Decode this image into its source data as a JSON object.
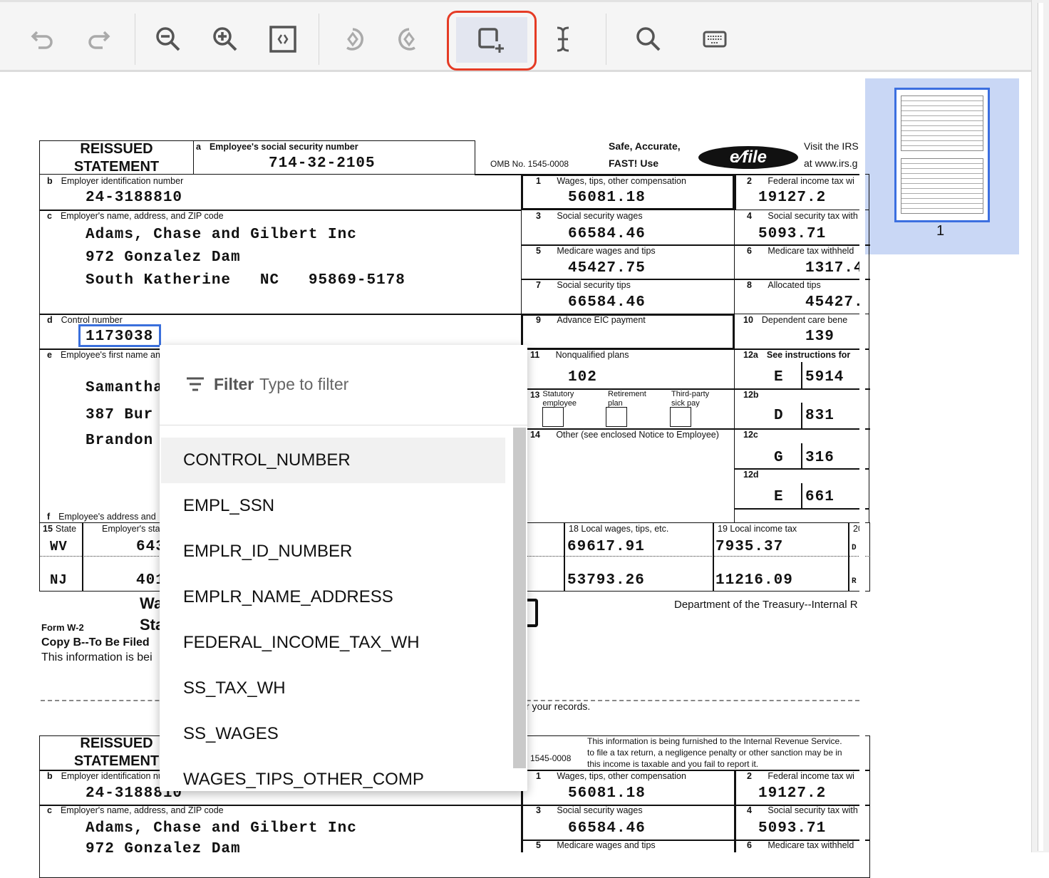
{
  "toolbar": {
    "buttons": [
      {
        "name": "undo-icon",
        "enabled": false
      },
      {
        "name": "redo-icon",
        "enabled": false
      },
      {
        "name": "zoom-out-icon",
        "enabled": true
      },
      {
        "name": "zoom-in-icon",
        "enabled": true
      },
      {
        "name": "fit-page-icon",
        "enabled": true
      },
      {
        "name": "rotate-left-icon",
        "enabled": false
      },
      {
        "name": "rotate-right-icon",
        "enabled": false
      },
      {
        "name": "add-box-icon",
        "enabled": true,
        "active": true
      },
      {
        "name": "text-cursor-icon",
        "enabled": true
      },
      {
        "name": "search-icon",
        "enabled": true
      },
      {
        "name": "keyboard-icon",
        "enabled": true
      }
    ],
    "highlight_color": "#e53b25"
  },
  "thumbnail": {
    "page_number": "1",
    "bg_color": "#c9d7f5"
  },
  "form": {
    "reissued": "REISSUED",
    "statement": "STATEMENT",
    "ssn_label": "Employee's social security number",
    "ssn": "714-32-2105",
    "omb": "OMB No. 1545-0008",
    "safe": "Safe, Accurate,",
    "fast": "FAST! Use",
    "efile_logo": "IRS e-file",
    "visit1": "Visit the IRS",
    "visit2": "at www.irs.g",
    "b_label": "Employer identification number",
    "ein": "24-3188810",
    "c_label": "Employer's name, address, and ZIP code",
    "employer_name": "Adams, Chase and Gilbert Inc",
    "employer_street": "972 Gonzalez Dam",
    "employer_city": "South Katherine   NC   95869-5178",
    "d_label": "Control number",
    "control_number": "1173038",
    "e_label": "Employee's first name and",
    "employee_name": "Samantha",
    "employee_street": "387 Bur",
    "employee_city": "Brandon",
    "f_label": "Employee's address and",
    "box1_label": "Wages, tips, other compensation",
    "box1": "56081.18",
    "box2_label": "Federal income tax wi",
    "box2": "19127.2",
    "box3_label": "Social security wages",
    "box3": "66584.46",
    "box4_label": "Social security tax with",
    "box4": "5093.71",
    "box5_label": "Medicare wages and tips",
    "box5": "45427.75",
    "box6_label": "Medicare tax withheld",
    "box6": "1317.4",
    "box7_label": "Social security tips",
    "box7": "66584.46",
    "box8_label": "Allocated tips",
    "box8": "45427.",
    "box9_label": "Advance EIC payment",
    "box10_label": "Dependent care bene",
    "box10": "139",
    "box11_label": "Nonqualified plans",
    "box11": "102",
    "box12a_label": "See instructions for",
    "box12a_code": "E",
    "box12a": "5914",
    "box12b_code": "D",
    "box12b": "831",
    "box12c_code": "G",
    "box12c": "316",
    "box12d_code": "E",
    "box12d": "661",
    "box13_statutory": "Statutory employee",
    "box13_retirement": "Retirement plan",
    "box13_thirdparty": "Third-party sick pay",
    "box14_label": "Other (see enclosed Notice to Employee)",
    "box15_label": "State",
    "box15_emp_label": "Employer's sta",
    "state_rows": [
      {
        "state": "WV",
        "emp_id": "643",
        "local_wages": "69617.91",
        "local_tax": "7935.37",
        "locality": "D"
      },
      {
        "state": "NJ",
        "emp_id": "401",
        "local_wages": "53793.26",
        "local_tax": "11216.09",
        "locality": "R"
      }
    ],
    "box18_label": "18  Local wages, tips, etc.",
    "box19_label": "19  Local income tax",
    "box20_label": "20",
    "title1": "Wa",
    "title2": "Sta",
    "form_name": "Form  W-2",
    "copy_b": "Copy B--To Be Filed",
    "info_text": "This information is bei",
    "dept": "Department of the Treasury--Internal R",
    "records": "r your records.",
    "irs_info1": "This information is being furnished to the Internal Revenue Service.",
    "irs_info2": "to file a tax return, a negligence penalty or other sanction may be in",
    "irs_info3": "this income is taxable and you fail to report it.",
    "omb2": "1545-0008"
  },
  "dropdown": {
    "filter_label": "Filter",
    "filter_placeholder": "Type to filter",
    "items": [
      "CONTROL_NUMBER",
      "EMPL_SSN",
      "EMPLR_ID_NUMBER",
      "EMPLR_NAME_ADDRESS",
      "FEDERAL_INCOME_TAX_WH",
      "SS_TAX_WH",
      "SS_WAGES",
      "WAGES_TIPS_OTHER_COMP"
    ],
    "active_index": 0
  }
}
